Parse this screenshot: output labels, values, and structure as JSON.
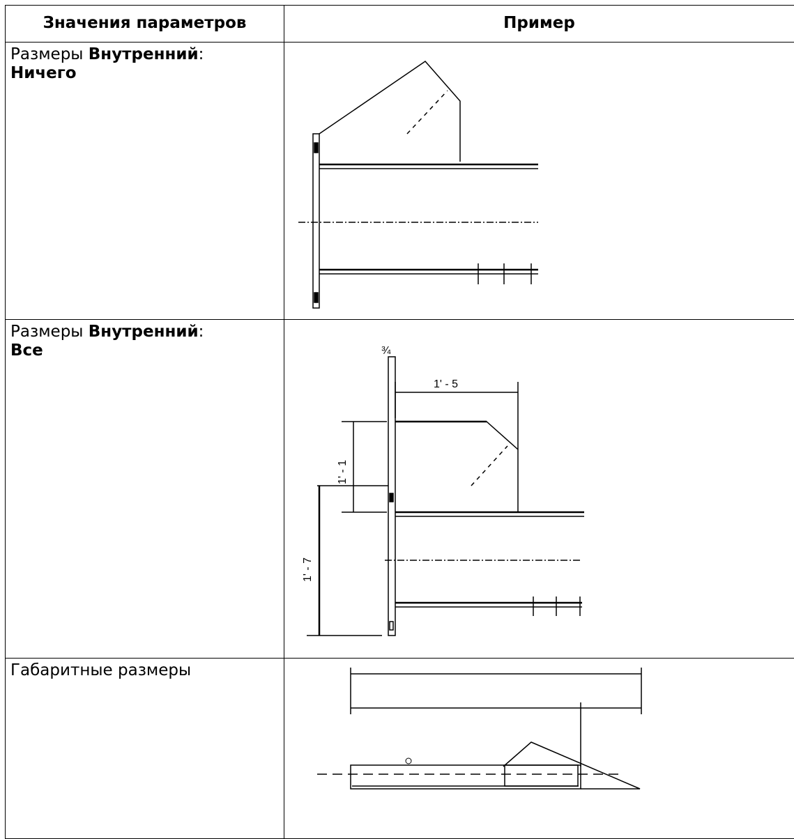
{
  "table": {
    "header": [
      "Значения параметров",
      "Пример"
    ],
    "rows": [
      {
        "label": [
          "Размеры ",
          "Внутренний",
          ":",
          "Ничего"
        ]
      },
      {
        "label": [
          "Размеры ",
          "Внутренний",
          ":",
          "Все"
        ],
        "drawing_labels": [
          "¾",
          "1' - 5",
          "1' - 1",
          "1' - 7"
        ]
      },
      {
        "label": [
          "Габаритные размеры"
        ]
      }
    ]
  }
}
